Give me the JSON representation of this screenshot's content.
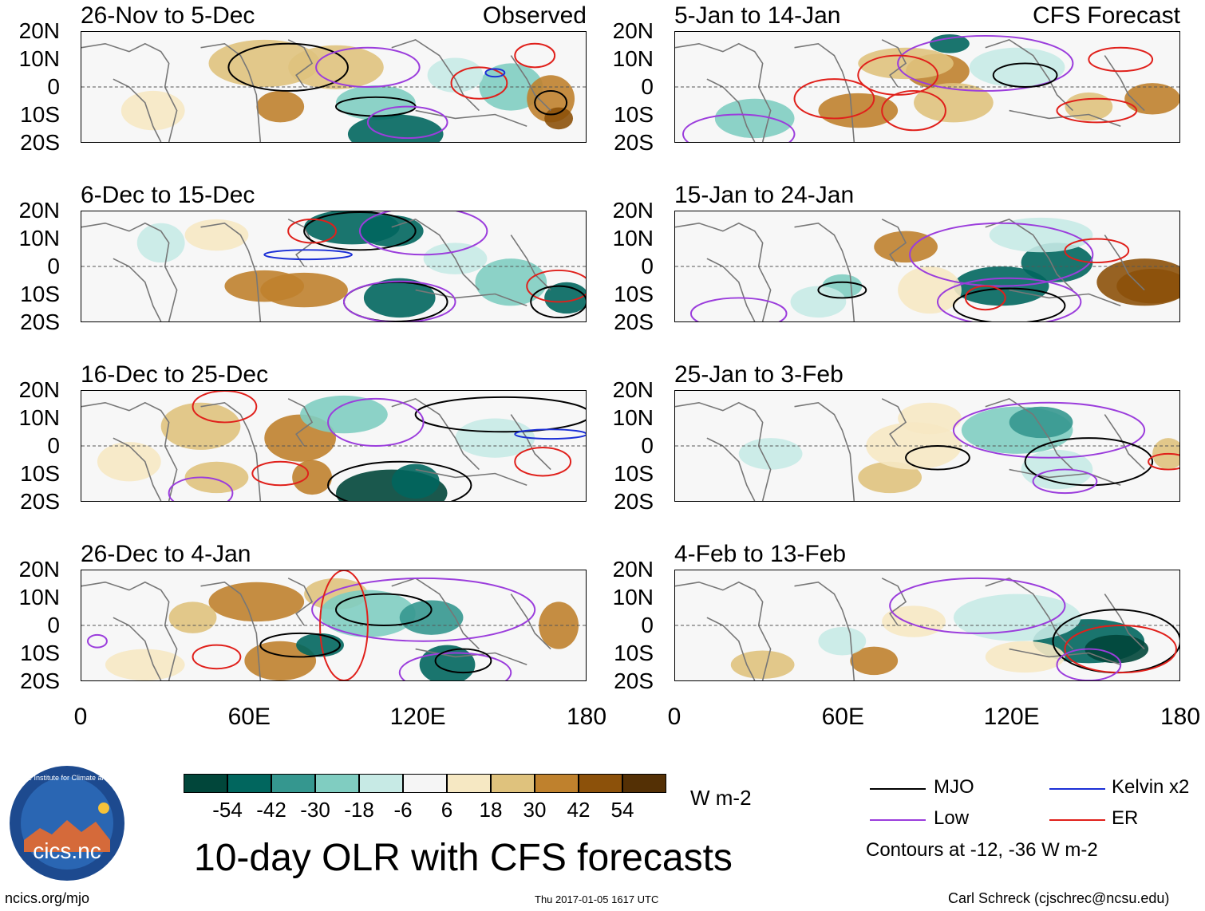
{
  "panels": [
    {
      "title": "26-Nov to 5-Dec",
      "tag": "Observed"
    },
    {
      "title": "6-Dec to 15-Dec",
      "tag": ""
    },
    {
      "title": "16-Dec to 25-Dec",
      "tag": ""
    },
    {
      "title": "26-Dec to 4-Jan",
      "tag": ""
    },
    {
      "title": "5-Jan to 14-Jan",
      "tag": "CFS Forecast"
    },
    {
      "title": "15-Jan to 24-Jan",
      "tag": ""
    },
    {
      "title": "25-Jan to 3-Feb",
      "tag": ""
    },
    {
      "title": "4-Feb to 13-Feb",
      "tag": ""
    }
  ],
  "lat_labels": [
    "20N",
    "10N",
    "0",
    "10S",
    "20S"
  ],
  "lon_labels": [
    "0",
    "60E",
    "120E",
    "180"
  ],
  "colorbar": {
    "colors": [
      "#01463a",
      "#01665e",
      "#35978f",
      "#80cdc1",
      "#c7eae5",
      "#f5f5f5",
      "#f6e8c3",
      "#dfc27d",
      "#bf812d",
      "#8c510a",
      "#543005"
    ],
    "labels": [
      "-54",
      "-42",
      "-30",
      "-18",
      "-6",
      "6",
      "18",
      "30",
      "42",
      "54"
    ],
    "unit": "W m-2"
  },
  "legend": {
    "items": [
      {
        "label": "MJO",
        "color": "#000000"
      },
      {
        "label": "Kelvin x2",
        "color": "#1b2fd6"
      },
      {
        "label": "Low",
        "color": "#9b3ddc"
      },
      {
        "label": "ER",
        "color": "#e0201b"
      }
    ],
    "note": "Contours at -12, -36 W m-2"
  },
  "main_title": "10-day OLR with CFS forecasts",
  "logo_text": "cics.nc",
  "logo_ring_text": "Cooperative Institute for Climate and Satellites",
  "footer": {
    "url": "ncics.org/mjo",
    "timestamp": "Thu 2017-01-05 1617 UTC",
    "credit": "Carl Schreck (cjschrec@ncsu.edu)"
  }
}
